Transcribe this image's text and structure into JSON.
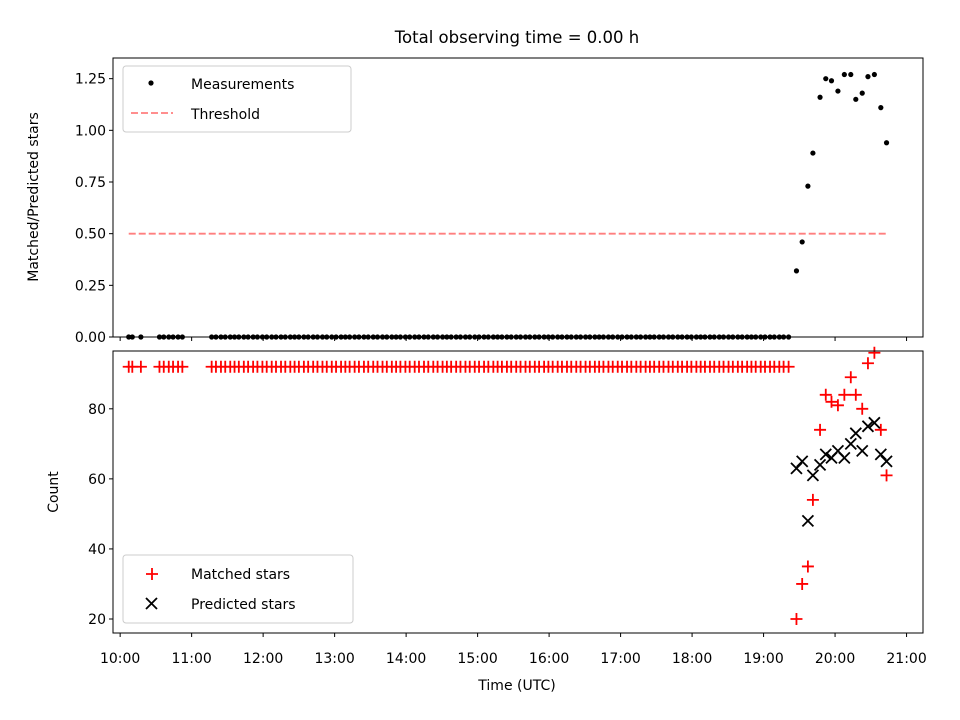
{
  "title": "Total observing time = 0.00 h",
  "chart_data": [
    {
      "type": "scatter",
      "ylabel": "Matched/Predicted stars",
      "xlim": [
        9.9,
        21.23
      ],
      "ylim": [
        0,
        1.35
      ],
      "yticks": [
        0.0,
        0.25,
        0.5,
        0.75,
        1.0,
        1.25
      ],
      "ytick_labels": [
        "0.00",
        "0.25",
        "0.50",
        "0.75",
        "1.00",
        "1.25"
      ],
      "legend": {
        "position": "top-left",
        "entries": [
          "Measurements",
          "Threshold"
        ]
      },
      "threshold": {
        "name": "Threshold",
        "value": 0.5,
        "x_range": [
          10.12,
          20.72
        ],
        "color": "#ff7f7f"
      },
      "measurements": {
        "name": "Measurements",
        "color": "#000000",
        "x": [
          10.12,
          10.17,
          10.29,
          10.55,
          10.61,
          10.68,
          10.74,
          10.81,
          10.87,
          11.28,
          11.34,
          11.41,
          11.47,
          11.54,
          11.6,
          11.66,
          11.73,
          11.79,
          11.86,
          11.92,
          11.99,
          12.05,
          12.12,
          12.18,
          12.25,
          12.31,
          12.38,
          12.44,
          12.5,
          12.57,
          12.63,
          12.7,
          12.76,
          12.83,
          12.89,
          12.96,
          13.02,
          13.09,
          13.15,
          13.21,
          13.28,
          13.34,
          13.41,
          13.47,
          13.54,
          13.6,
          13.67,
          13.73,
          13.8,
          13.86,
          13.92,
          13.99,
          14.05,
          14.12,
          14.18,
          14.25,
          14.31,
          14.38,
          14.44,
          14.51,
          14.57,
          14.63,
          14.7,
          14.76,
          14.83,
          14.89,
          14.96,
          15.02,
          15.09,
          15.15,
          15.22,
          15.28,
          15.34,
          15.41,
          15.47,
          15.54,
          15.6,
          15.67,
          15.73,
          15.8,
          15.86,
          15.93,
          15.99,
          16.05,
          16.12,
          16.18,
          16.25,
          16.31,
          16.38,
          16.44,
          16.51,
          16.57,
          16.64,
          16.7,
          16.76,
          16.83,
          16.89,
          16.96,
          17.02,
          17.09,
          17.15,
          17.22,
          17.28,
          17.35,
          17.41,
          17.47,
          17.54,
          17.6,
          17.67,
          17.73,
          17.8,
          17.86,
          17.93,
          17.99,
          18.06,
          18.12,
          18.18,
          18.25,
          18.31,
          18.38,
          18.44,
          18.51,
          18.57,
          18.64,
          18.7,
          18.77,
          18.83,
          18.89,
          18.96,
          19.02,
          19.09,
          19.15,
          19.22,
          19.28,
          19.35,
          19.46,
          19.54,
          19.62,
          19.69,
          19.79,
          19.87,
          19.95,
          20.04,
          20.13,
          20.22,
          20.29,
          20.38,
          20.46,
          20.55,
          20.64,
          20.72
        ],
        "y": [
          0,
          0,
          0,
          0,
          0,
          0,
          0,
          0,
          0,
          0,
          0,
          0,
          0,
          0,
          0,
          0,
          0,
          0,
          0,
          0,
          0,
          0,
          0,
          0,
          0,
          0,
          0,
          0,
          0,
          0,
          0,
          0,
          0,
          0,
          0,
          0,
          0,
          0,
          0,
          0,
          0,
          0,
          0,
          0,
          0,
          0,
          0,
          0,
          0,
          0,
          0,
          0,
          0,
          0,
          0,
          0,
          0,
          0,
          0,
          0,
          0,
          0,
          0,
          0,
          0,
          0,
          0,
          0,
          0,
          0,
          0,
          0,
          0,
          0,
          0,
          0,
          0,
          0,
          0,
          0,
          0,
          0,
          0,
          0,
          0,
          0,
          0,
          0,
          0,
          0,
          0,
          0,
          0,
          0,
          0,
          0,
          0,
          0,
          0,
          0,
          0,
          0,
          0,
          0,
          0,
          0,
          0,
          0,
          0,
          0,
          0,
          0,
          0,
          0,
          0,
          0,
          0,
          0,
          0,
          0,
          0,
          0,
          0,
          0,
          0,
          0,
          0,
          0,
          0,
          0,
          0,
          0,
          0,
          0,
          0,
          0.32,
          0.46,
          0.73,
          0.89,
          1.16,
          1.25,
          1.24,
          1.19,
          1.27,
          1.27,
          1.15,
          1.18,
          1.26,
          1.27,
          1.11,
          0.94
        ]
      }
    },
    {
      "type": "scatter",
      "ylabel": "Count",
      "xlabel": "Time (UTC)",
      "xlim": [
        9.9,
        21.23
      ],
      "ylim": [
        16,
        96.5
      ],
      "yticks": [
        20,
        40,
        60,
        80
      ],
      "xticks": [
        10,
        11,
        12,
        13,
        14,
        15,
        16,
        17,
        18,
        19,
        20,
        21
      ],
      "xtick_labels": [
        "10:00",
        "11:00",
        "12:00",
        "13:00",
        "14:00",
        "15:00",
        "16:00",
        "17:00",
        "18:00",
        "19:00",
        "20:00",
        "21:00"
      ],
      "legend": {
        "position": "bottom-left",
        "entries": [
          "Matched stars",
          "Predicted stars"
        ]
      },
      "matched": {
        "name": "Matched stars",
        "color": "#ff0000",
        "x": [
          10.12,
          10.17,
          10.29,
          10.55,
          10.61,
          10.68,
          10.74,
          10.81,
          10.87,
          11.28,
          11.34,
          11.41,
          11.47,
          11.54,
          11.6,
          11.66,
          11.73,
          11.79,
          11.86,
          11.92,
          11.99,
          12.05,
          12.12,
          12.18,
          12.25,
          12.31,
          12.38,
          12.44,
          12.5,
          12.57,
          12.63,
          12.7,
          12.76,
          12.83,
          12.89,
          12.96,
          13.02,
          13.09,
          13.15,
          13.21,
          13.28,
          13.34,
          13.41,
          13.47,
          13.54,
          13.6,
          13.67,
          13.73,
          13.8,
          13.86,
          13.92,
          13.99,
          14.05,
          14.12,
          14.18,
          14.25,
          14.31,
          14.38,
          14.44,
          14.51,
          14.57,
          14.63,
          14.7,
          14.76,
          14.83,
          14.89,
          14.96,
          15.02,
          15.09,
          15.15,
          15.22,
          15.28,
          15.34,
          15.41,
          15.47,
          15.54,
          15.6,
          15.67,
          15.73,
          15.8,
          15.86,
          15.93,
          15.99,
          16.05,
          16.12,
          16.18,
          16.25,
          16.31,
          16.38,
          16.44,
          16.51,
          16.57,
          16.64,
          16.7,
          16.76,
          16.83,
          16.89,
          16.96,
          17.02,
          17.09,
          17.15,
          17.22,
          17.28,
          17.35,
          17.41,
          17.47,
          17.54,
          17.6,
          17.67,
          17.73,
          17.8,
          17.86,
          17.93,
          17.99,
          18.06,
          18.12,
          18.18,
          18.25,
          18.31,
          18.38,
          18.44,
          18.51,
          18.57,
          18.64,
          18.7,
          18.77,
          18.83,
          18.89,
          18.96,
          19.02,
          19.09,
          19.15,
          19.22,
          19.28,
          19.35,
          19.46,
          19.54,
          19.62,
          19.69,
          19.79,
          19.87,
          19.95,
          20.04,
          20.13,
          20.22,
          20.29,
          20.38,
          20.46,
          20.55,
          20.64,
          20.72
        ],
        "y": [
          92,
          92,
          92,
          92,
          92,
          92,
          92,
          92,
          92,
          92,
          92,
          92,
          92,
          92,
          92,
          92,
          92,
          92,
          92,
          92,
          92,
          92,
          92,
          92,
          92,
          92,
          92,
          92,
          92,
          92,
          92,
          92,
          92,
          92,
          92,
          92,
          92,
          92,
          92,
          92,
          92,
          92,
          92,
          92,
          92,
          92,
          92,
          92,
          92,
          92,
          92,
          92,
          92,
          92,
          92,
          92,
          92,
          92,
          92,
          92,
          92,
          92,
          92,
          92,
          92,
          92,
          92,
          92,
          92,
          92,
          92,
          92,
          92,
          92,
          92,
          92,
          92,
          92,
          92,
          92,
          92,
          92,
          92,
          92,
          92,
          92,
          92,
          92,
          92,
          92,
          92,
          92,
          92,
          92,
          92,
          92,
          92,
          92,
          92,
          92,
          92,
          92,
          92,
          92,
          92,
          92,
          92,
          92,
          92,
          92,
          92,
          92,
          92,
          92,
          92,
          92,
          92,
          92,
          92,
          92,
          92,
          92,
          92,
          92,
          92,
          92,
          92,
          92,
          92,
          92,
          92,
          92,
          92,
          92,
          92,
          20,
          30,
          35,
          54,
          74,
          84,
          82,
          81,
          84,
          89,
          84,
          80,
          93,
          96,
          74,
          61
        ]
      },
      "predicted": {
        "name": "Predicted stars",
        "color": "#000000",
        "x": [
          19.46,
          19.54,
          19.62,
          19.69,
          19.79,
          19.87,
          19.95,
          20.04,
          20.13,
          20.22,
          20.29,
          20.38,
          20.46,
          20.55,
          20.64,
          20.72
        ],
        "y": [
          63,
          65,
          48,
          61,
          64,
          67,
          66,
          68,
          66,
          70,
          73,
          68,
          75,
          76,
          67,
          65
        ]
      }
    }
  ]
}
